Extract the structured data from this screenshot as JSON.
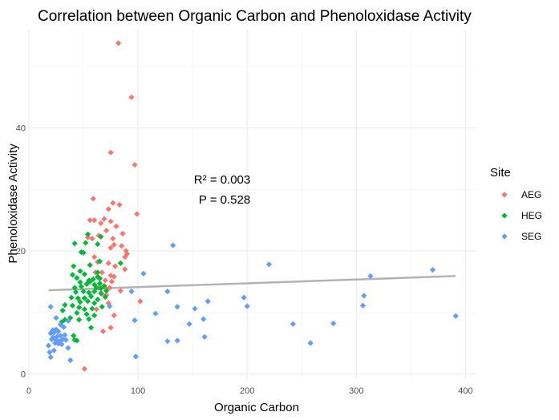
{
  "chart_data": {
    "type": "scatter",
    "title": "Correlation between Organic Carbon and Phenoloxidase Activity",
    "xlabel": "Organic Carbon",
    "ylabel": "Phenoloxidase Activity",
    "xlim": [
      0,
      410
    ],
    "ylim": [
      -1,
      56
    ],
    "x_ticks": [
      0,
      100,
      200,
      300,
      400
    ],
    "y_ticks": [
      0,
      20,
      40
    ],
    "grid": true,
    "legend": {
      "title": "Site",
      "position": "right",
      "entries": [
        {
          "name": "AEG",
          "color": "#F8766D"
        },
        {
          "name": "HEG",
          "color": "#00BA38"
        },
        {
          "name": "SEG",
          "color": "#619CFF"
        }
      ]
    },
    "annotations": [
      "R² = 0.003",
      "P = 0.528"
    ],
    "trend_line": {
      "color": "#b3b3b3",
      "x": [
        18,
        391
      ],
      "y": [
        13.6,
        15.9
      ]
    },
    "series": [
      {
        "name": "AEG",
        "color": "#F8766D",
        "points": [
          [
            82,
            53.8
          ],
          [
            94,
            45
          ],
          [
            75,
            36
          ],
          [
            97,
            34
          ],
          [
            59,
            28.5
          ],
          [
            77,
            27.8
          ],
          [
            83,
            27.5
          ],
          [
            73,
            26.8
          ],
          [
            99,
            26
          ],
          [
            56,
            25
          ],
          [
            60,
            25
          ],
          [
            69,
            25.2
          ],
          [
            75,
            24.8
          ],
          [
            66,
            24.5
          ],
          [
            80,
            24
          ],
          [
            71,
            23.3
          ],
          [
            86,
            22.8
          ],
          [
            64,
            22.5
          ],
          [
            58,
            22
          ],
          [
            54,
            22.2
          ],
          [
            77,
            22
          ],
          [
            78,
            21
          ],
          [
            75,
            20.5
          ],
          [
            85,
            20.8
          ],
          [
            89,
            20
          ],
          [
            90,
            19.5
          ],
          [
            88,
            19
          ],
          [
            60,
            19
          ],
          [
            63,
            18.2
          ],
          [
            73,
            18
          ],
          [
            79,
            17.5
          ],
          [
            61,
            16.5
          ],
          [
            67,
            16.5
          ],
          [
            75,
            16
          ],
          [
            78,
            15.8
          ],
          [
            88,
            17
          ],
          [
            55,
            15
          ],
          [
            70,
            15.2
          ],
          [
            76,
            15
          ],
          [
            64,
            14
          ],
          [
            71,
            13.8
          ],
          [
            74,
            14
          ],
          [
            84,
            13.5
          ],
          [
            67,
            13
          ],
          [
            71,
            12.8
          ],
          [
            102,
            11.8
          ],
          [
            73,
            11.5
          ],
          [
            62,
            10.5
          ],
          [
            78,
            9.5
          ],
          [
            75,
            7.5
          ],
          [
            68,
            6.9
          ],
          [
            51,
            0.8
          ]
        ]
      },
      {
        "name": "HEG",
        "color": "#00BA38",
        "points": [
          [
            42,
            21.2
          ],
          [
            54,
            22.7
          ],
          [
            66,
            22.3
          ],
          [
            52,
            21.3
          ],
          [
            63,
            21.1
          ],
          [
            65,
            18.3
          ],
          [
            48,
            19.8
          ],
          [
            50,
            19.7
          ],
          [
            84,
            18
          ],
          [
            41,
            17.5
          ],
          [
            56,
            17.7
          ],
          [
            47,
            16.7
          ],
          [
            63,
            16.5
          ],
          [
            40,
            16.1
          ],
          [
            51,
            16.2
          ],
          [
            63,
            15.8
          ],
          [
            44,
            15.6
          ],
          [
            55,
            15.2
          ],
          [
            59,
            15.4
          ],
          [
            65,
            15.5
          ],
          [
            47,
            14.9
          ],
          [
            53,
            14.6
          ],
          [
            56,
            15
          ],
          [
            60,
            14.5
          ],
          [
            65,
            14.7
          ],
          [
            42,
            14
          ],
          [
            48,
            14.2
          ],
          [
            62,
            14
          ],
          [
            66,
            13.9
          ],
          [
            69,
            14.3
          ],
          [
            43,
            13.3
          ],
          [
            50,
            13.4
          ],
          [
            55,
            13.2
          ],
          [
            60,
            13.4
          ],
          [
            66,
            13.1
          ],
          [
            71,
            13.5
          ],
          [
            39,
            12.4
          ],
          [
            45,
            12.3
          ],
          [
            51,
            12.3
          ],
          [
            57,
            12.6
          ],
          [
            63,
            12.1
          ],
          [
            70,
            12.5
          ],
          [
            47,
            11.7
          ],
          [
            54,
            11.8
          ],
          [
            60,
            11.5
          ],
          [
            33,
            11.2
          ],
          [
            40,
            11.1
          ],
          [
            46,
            10.8
          ],
          [
            51,
            10.5
          ],
          [
            58,
            10.6
          ],
          [
            67,
            10.9
          ],
          [
            31,
            10.3
          ],
          [
            44,
            9.9
          ],
          [
            53,
            9.7
          ],
          [
            60,
            9.5
          ],
          [
            38,
            9.1
          ],
          [
            46,
            8.8
          ],
          [
            55,
            8.9
          ],
          [
            30,
            8.4
          ],
          [
            33,
            8.8
          ],
          [
            57,
            7.5
          ],
          [
            41,
            6.2
          ],
          [
            42,
            5.5
          ],
          [
            44,
            5.4
          ]
        ]
      },
      {
        "name": "SEG",
        "color": "#619CFF",
        "points": [
          [
            132,
            20.9
          ],
          [
            220,
            17.8
          ],
          [
            370,
            16.9
          ],
          [
            313,
            15.9
          ],
          [
            105,
            16.3
          ],
          [
            94,
            13.4
          ],
          [
            127,
            13.4
          ],
          [
            197,
            12.4
          ],
          [
            307,
            12.7
          ],
          [
            164,
            11.8
          ],
          [
            74,
            11
          ],
          [
            136,
            10.9
          ],
          [
            152,
            10.6
          ],
          [
            200,
            11
          ],
          [
            306,
            11.1
          ],
          [
            116,
            9.8
          ],
          [
            97,
            8.7
          ],
          [
            147,
            8.1
          ],
          [
            160,
            8.9
          ],
          [
            242,
            8.1
          ],
          [
            279,
            8.2
          ],
          [
            391,
            9.4
          ],
          [
            127,
            5.3
          ],
          [
            136,
            5.4
          ],
          [
            161,
            6
          ],
          [
            258,
            5
          ],
          [
            98,
            2.8
          ],
          [
            20,
            10.9
          ],
          [
            25,
            9.1
          ],
          [
            36,
            8.6
          ],
          [
            29,
            8
          ],
          [
            32,
            7.6
          ],
          [
            22,
            7.1
          ],
          [
            25,
            7.2
          ],
          [
            27,
            6.9
          ],
          [
            20,
            6.6
          ],
          [
            23,
            6.7
          ],
          [
            26,
            6.1
          ],
          [
            29,
            6.2
          ],
          [
            33,
            6.3
          ],
          [
            22,
            5.9
          ],
          [
            21,
            5.6
          ],
          [
            25,
            5.5
          ],
          [
            28,
            5.3
          ],
          [
            31,
            5.6
          ],
          [
            34,
            5.5
          ],
          [
            24,
            5
          ],
          [
            27,
            4.9
          ],
          [
            30,
            4.8
          ],
          [
            18,
            4.6
          ],
          [
            36,
            4.2
          ],
          [
            19,
            3.5
          ],
          [
            23,
            3.8
          ],
          [
            20,
            2.7
          ],
          [
            38,
            2.2
          ]
        ]
      }
    ]
  }
}
